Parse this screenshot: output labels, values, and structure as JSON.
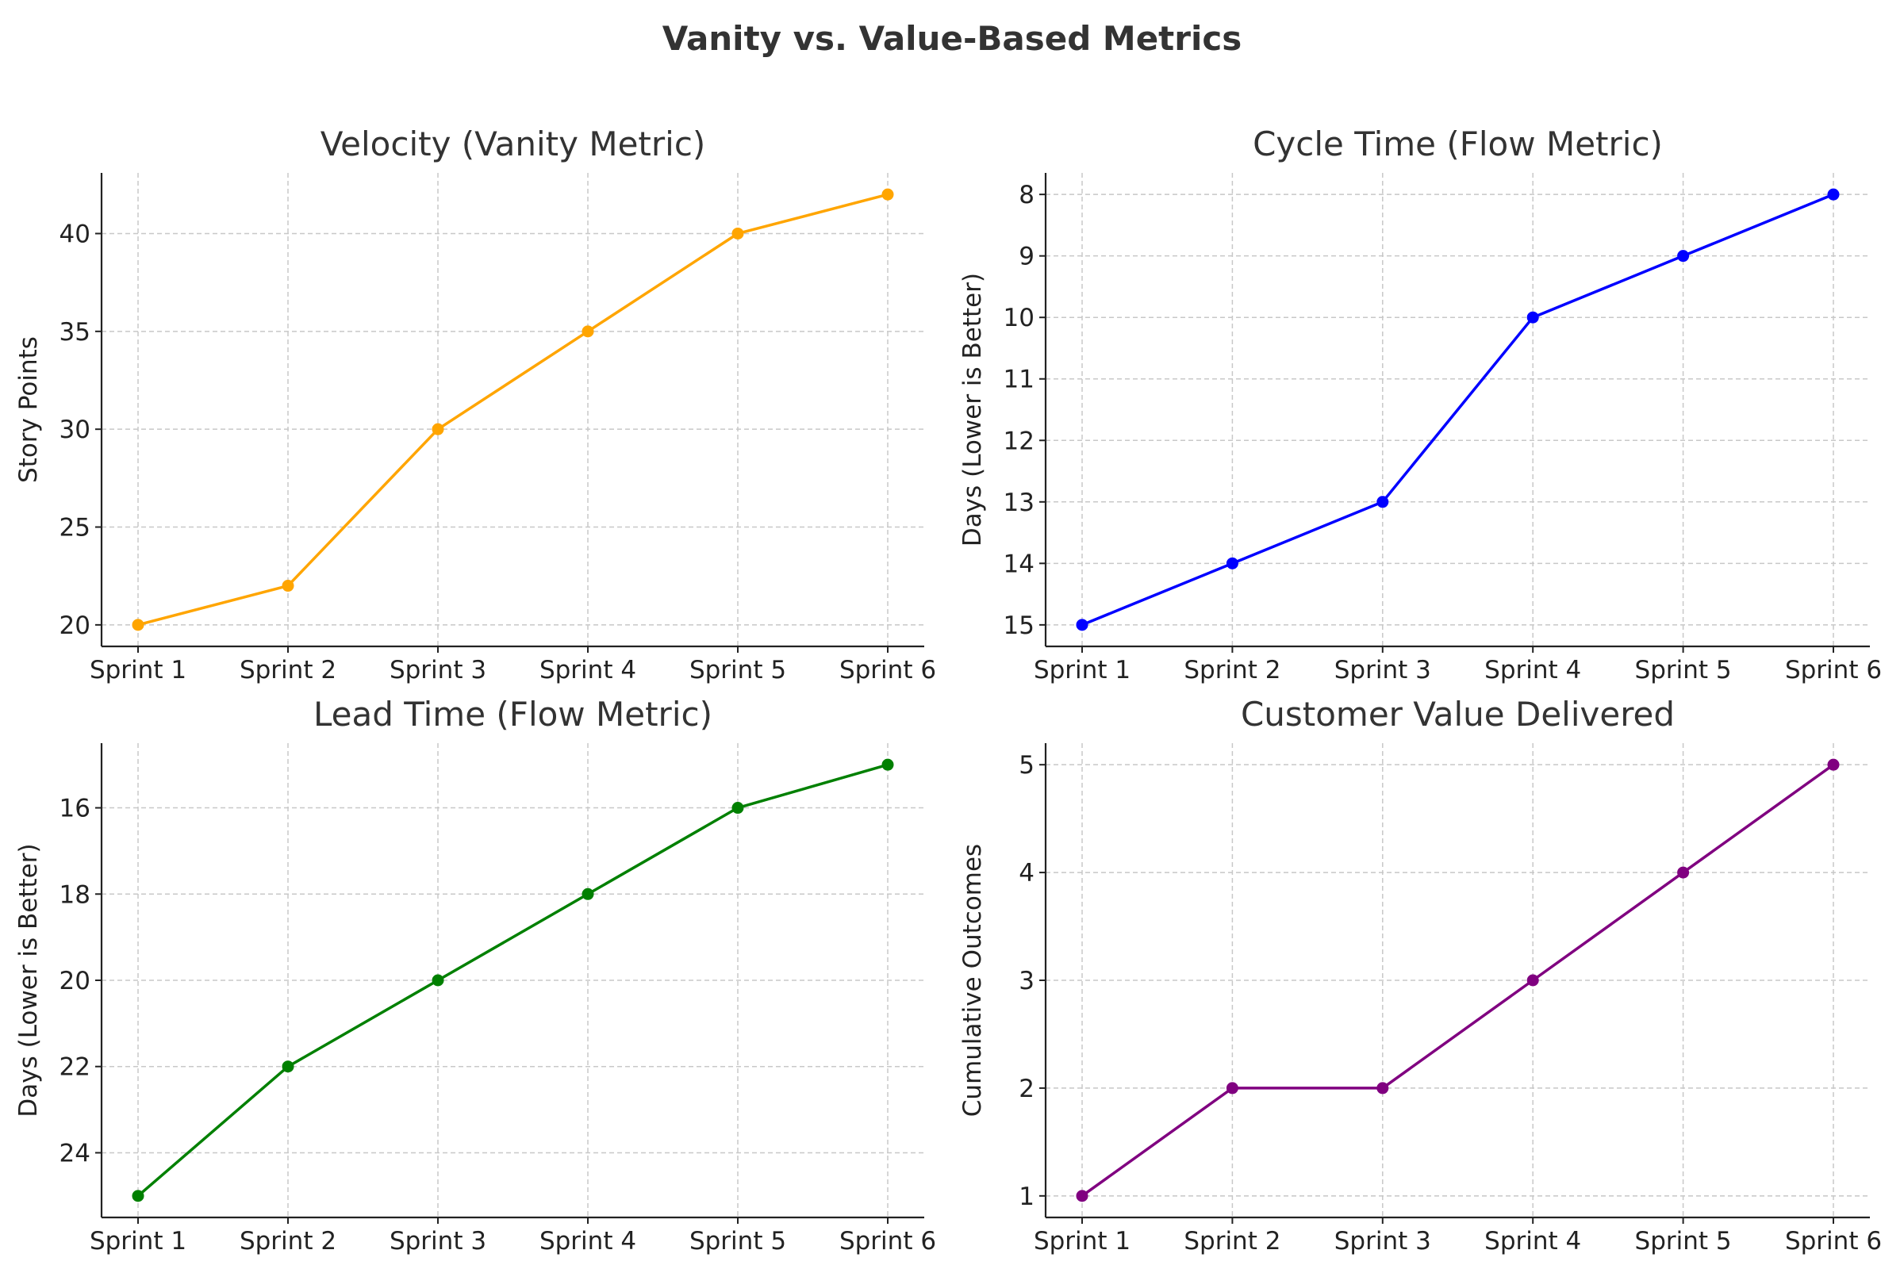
{
  "figure_title": "Vanity vs. Value-Based Metrics",
  "chart_data": [
    {
      "type": "line",
      "title": "Velocity (Vanity Metric)",
      "xlabel": "",
      "ylabel": "Story Points",
      "categories": [
        "Sprint 1",
        "Sprint 2",
        "Sprint 3",
        "Sprint 4",
        "Sprint 5",
        "Sprint 6"
      ],
      "values": [
        20,
        22,
        30,
        35,
        40,
        42
      ],
      "ylim": [
        18.9,
        43.1
      ],
      "yticks": [
        20,
        25,
        30,
        35,
        40
      ],
      "inverted": false,
      "color": "#FFA500",
      "grid": true
    },
    {
      "type": "line",
      "title": "Cycle Time (Flow Metric)",
      "xlabel": "",
      "ylabel": "Days (Lower is Better)",
      "categories": [
        "Sprint 1",
        "Sprint 2",
        "Sprint 3",
        "Sprint 4",
        "Sprint 5",
        "Sprint 6"
      ],
      "values": [
        15,
        14,
        13,
        10,
        9,
        8
      ],
      "ylim": [
        15.35,
        7.65
      ],
      "yticks": [
        8,
        9,
        10,
        11,
        12,
        13,
        14,
        15
      ],
      "inverted": true,
      "color": "#0000FF",
      "grid": true
    },
    {
      "type": "line",
      "title": "Lead Time (Flow Metric)",
      "xlabel": "",
      "ylabel": "Days (Lower is Better)",
      "categories": [
        "Sprint 1",
        "Sprint 2",
        "Sprint 3",
        "Sprint 4",
        "Sprint 5",
        "Sprint 6"
      ],
      "values": [
        25,
        22,
        20,
        18,
        16,
        15
      ],
      "ylim": [
        25.5,
        14.5
      ],
      "yticks": [
        16,
        18,
        20,
        22,
        24
      ],
      "inverted": true,
      "color": "#008000",
      "grid": true
    },
    {
      "type": "line",
      "title": "Customer Value Delivered",
      "xlabel": "",
      "ylabel": "Cumulative Outcomes",
      "categories": [
        "Sprint 1",
        "Sprint 2",
        "Sprint 3",
        "Sprint 4",
        "Sprint 5",
        "Sprint 6"
      ],
      "values": [
        1,
        2,
        2,
        3,
        4,
        5
      ],
      "ylim": [
        0.8,
        5.2
      ],
      "yticks": [
        1,
        2,
        3,
        4,
        5
      ],
      "inverted": false,
      "color": "#800080",
      "grid": true
    }
  ]
}
